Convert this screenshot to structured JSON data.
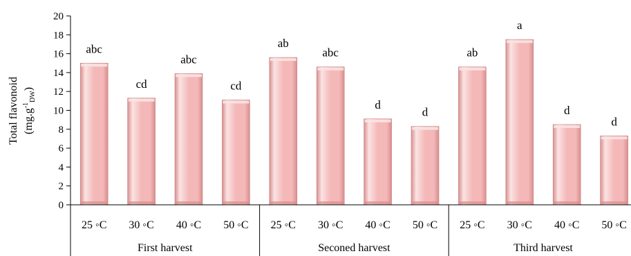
{
  "chart_data": {
    "type": "bar",
    "ylabel_line1": "Total flavonoid",
    "ylabel_line2_main": "(mg.g",
    "ylabel_line2_sup": "-1",
    "ylabel_line2_sub": "DW",
    "ylabel_line2_end": ")",
    "ylim": [
      0,
      20
    ],
    "yticks": [
      0,
      2,
      4,
      6,
      8,
      10,
      12,
      14,
      16,
      18,
      20
    ],
    "grid": false,
    "groups": [
      {
        "name": "First harvest",
        "categories": [
          "25 ◦C",
          "30 ◦C",
          "40 ◦C",
          "50 ◦C"
        ],
        "values": [
          15.0,
          11.3,
          13.9,
          11.1
        ],
        "labels": [
          "abc",
          "cd",
          "abc",
          "cd"
        ]
      },
      {
        "name": "Seconed harvest",
        "categories": [
          "25 ◦C",
          "30 ◦C",
          "40 ◦C",
          "50 ◦C"
        ],
        "values": [
          15.6,
          14.6,
          9.1,
          8.3
        ],
        "labels": [
          "ab",
          "abc",
          "d",
          "d"
        ]
      },
      {
        "name": "Third harvest",
        "categories": [
          "25 ◦C",
          "30 ◦C",
          "40 ◦C",
          "50 ◦C"
        ],
        "values": [
          14.6,
          17.5,
          8.5,
          7.3
        ],
        "labels": [
          "ab",
          "a",
          "d",
          "d"
        ]
      }
    ],
    "colors": {
      "bar_fill": "#f4b8b8",
      "bar_light": "#fbe3e3",
      "bar_dark": "#d88e8e",
      "axis": "#000000"
    }
  }
}
